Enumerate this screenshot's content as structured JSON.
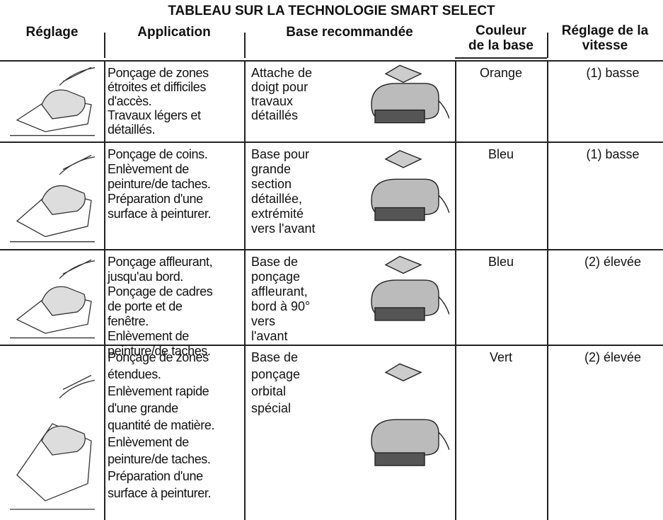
{
  "table": {
    "title": "TABLEAU SUR LA TECHNOLOGIE SMART SELECT",
    "headers": [
      [
        "Réglage"
      ],
      [
        "Application"
      ],
      [
        "Base recommandée"
      ],
      [
        "Couleur",
        "de la base"
      ],
      [
        "Réglage de la",
        "vitesse"
      ]
    ],
    "rows": [
      {
        "application": [
          "Ponçage de zones",
          "étroites et difficiles",
          "d'accès.",
          "Travaux légers et",
          "détaillés."
        ],
        "base": [
          "Attache de",
          "doigt pour",
          "travaux",
          "détaillés"
        ],
        "color": "Orange",
        "speed": "(1) basse"
      },
      {
        "application": [
          "Ponçage de coins.",
          "Enlèvement de",
          "peinture/de taches.",
          "Préparation d'une",
          "surface à peinturer."
        ],
        "base": [
          "Base pour",
          "grande",
          "section",
          "détaillée,",
          "extrémité",
          "vers l'avant"
        ],
        "color": "Bleu",
        "speed": "(1) basse"
      },
      {
        "application": [
          "Ponçage affleurant,",
          "jusqu'au bord.",
          "Ponçage de cadres",
          "de porte et de",
          "fenêtre.",
          "Enlèvement de",
          "peinture/de taches."
        ],
        "base": [
          "Base de",
          "ponçage",
          "affleurant,",
          "bord à 90°",
          "vers",
          "l'avant"
        ],
        "color": "Bleu",
        "speed": "(2) élevée"
      },
      {
        "application": [
          "Ponçage de zones",
          "étendues.",
          "Enlèvement rapide",
          "d'une grande",
          "quantité de matière.",
          "Enlèvement de",
          "peinture/de taches.",
          "Préparation d'une",
          "surface à peinturer."
        ],
        "base": [
          "Base de",
          "ponçage",
          "orbital",
          "spécial"
        ],
        "color": "Vert",
        "speed": "(2) élevée"
      }
    ]
  }
}
